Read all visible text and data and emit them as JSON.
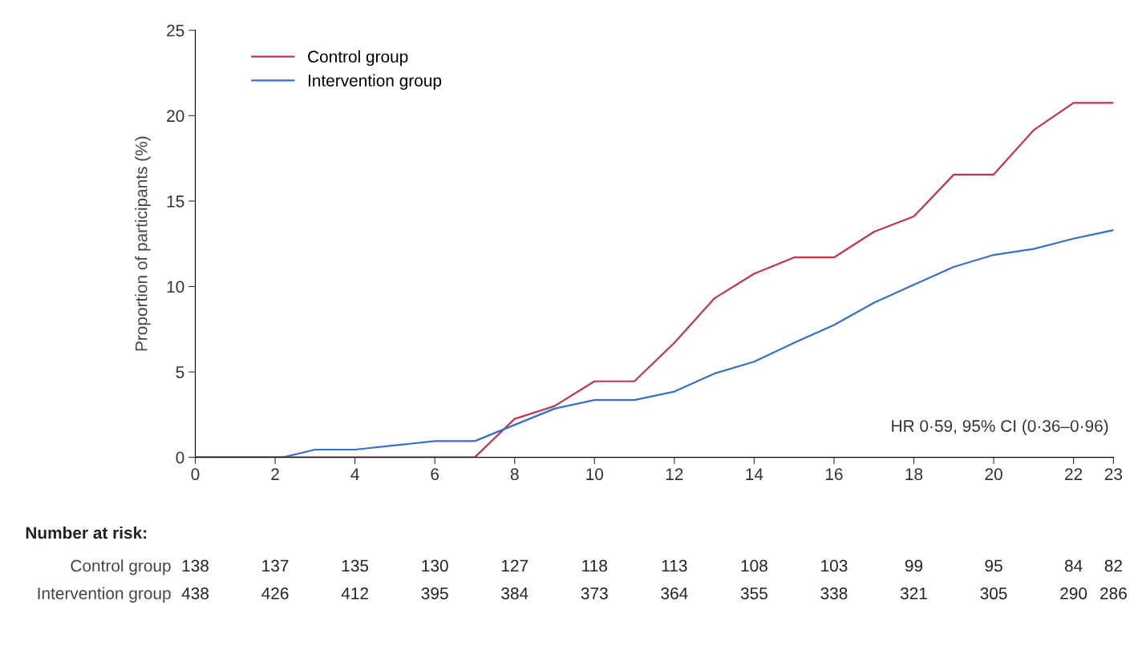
{
  "chart_data": {
    "type": "line",
    "ylabel": "Proportion of participants (%)",
    "xlim": [
      0,
      23
    ],
    "ylim": [
      0,
      25
    ],
    "xticks": [
      0,
      2,
      4,
      6,
      8,
      10,
      12,
      14,
      16,
      18,
      20,
      22,
      23
    ],
    "yticks": [
      0,
      5,
      10,
      15,
      20,
      25
    ],
    "grid": false,
    "legend": "top left",
    "marker": "none",
    "line_style": "solid",
    "series": [
      {
        "name": "Control group",
        "color": "#c0354e",
        "x": [
          0,
          7,
          8,
          9,
          10,
          11,
          12,
          13,
          14,
          15,
          16,
          17,
          18,
          19,
          20,
          21,
          22,
          23
        ],
        "values": [
          0,
          0,
          2.25,
          3,
          4.45,
          4.45,
          6.7,
          9.3,
          10.75,
          11.7,
          11.7,
          13.2,
          14.1,
          16.55,
          16.55,
          19.15,
          20.75,
          20.75
        ]
      },
      {
        "name": "Intervention group",
        "color": "#3a6fc4",
        "x": [
          0,
          2.2,
          3,
          4,
          5,
          6,
          7,
          8,
          9,
          10,
          11,
          12,
          13,
          14,
          15,
          16,
          17,
          18,
          19,
          20,
          21,
          22,
          23
        ],
        "values": [
          0,
          0,
          0.45,
          0.45,
          0.7,
          0.95,
          0.95,
          1.9,
          2.85,
          3.35,
          3.35,
          3.85,
          4.9,
          5.6,
          6.7,
          7.75,
          9.05,
          10.1,
          11.15,
          11.85,
          12.2,
          12.8,
          13.3
        ]
      }
    ],
    "annotations": [
      "HR 0·59, 95% CI (0·36–0·96)",
      "Number at risk:",
      "Control group",
      "138",
      "137",
      "135",
      "130",
      "127",
      "118",
      "113",
      "108",
      "103",
      "99",
      "95",
      "84",
      "82",
      "Intervention group",
      "438",
      "426",
      "412",
      "395",
      "384",
      "373",
      "364",
      "355",
      "338",
      "321",
      "305",
      "290",
      "286"
    ]
  }
}
